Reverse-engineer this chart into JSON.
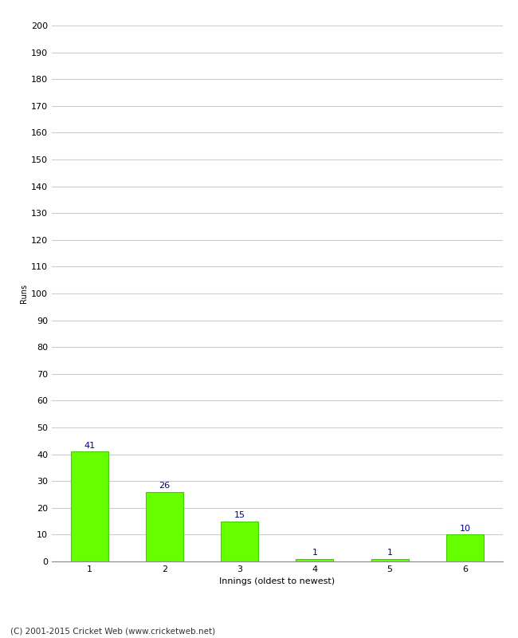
{
  "categories": [
    "1",
    "2",
    "3",
    "4",
    "5",
    "6"
  ],
  "values": [
    41,
    26,
    15,
    1,
    1,
    10
  ],
  "bar_color": "#66ff00",
  "bar_edge_color": "#44cc00",
  "xlabel": "Innings (oldest to newest)",
  "ylabel": "Runs",
  "ylim": [
    0,
    200
  ],
  "yticks": [
    0,
    10,
    20,
    30,
    40,
    50,
    60,
    70,
    80,
    90,
    100,
    110,
    120,
    130,
    140,
    150,
    160,
    170,
    180,
    190,
    200
  ],
  "annotation_color": "#000080",
  "annotation_fontsize": 8,
  "ylabel_fontsize": 7,
  "xlabel_fontsize": 8,
  "tick_fontsize": 8,
  "footer_text": "(C) 2001-2015 Cricket Web (www.cricketweb.net)",
  "footer_fontsize": 7.5,
  "background_color": "#ffffff",
  "grid_color": "#cccccc",
  "bar_width": 0.5
}
